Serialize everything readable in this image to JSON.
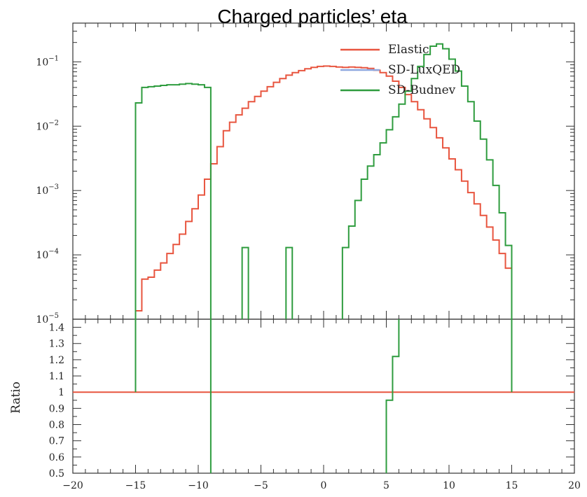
{
  "chart_data": [
    {
      "type": "line",
      "title": "Charged particles’ eta",
      "y_scale": "log",
      "xlim": [
        -20,
        20
      ],
      "ylim": [
        1e-05,
        0.4
      ],
      "y_ticks": [
        {
          "value": 0.1,
          "base": "10",
          "exp": "−1"
        },
        {
          "value": 0.01,
          "base": "10",
          "exp": "−2"
        },
        {
          "value": 0.001,
          "base": "10",
          "exp": "−3"
        },
        {
          "value": 0.0001,
          "base": "10",
          "exp": "−4"
        },
        {
          "value": 1e-05,
          "base": "10",
          "exp": "−5"
        }
      ],
      "legend_position": "top-right",
      "series": [
        {
          "name": "Elastic",
          "color": "#e8553f",
          "steps": [
            [
              -15,
              -14.5,
              1.35e-05
            ],
            [
              -14.5,
              -14,
              4.2e-05
            ],
            [
              -14,
              -13.5,
              4.5e-05
            ],
            [
              -13.5,
              -13,
              5.8e-05
            ],
            [
              -13,
              -12.5,
              7.5e-05
            ],
            [
              -12.5,
              -12,
              0.000105
            ],
            [
              -12,
              -11.5,
              0.000145
            ],
            [
              -11.5,
              -11,
              0.00021
            ],
            [
              -11,
              -10.5,
              0.00033
            ],
            [
              -10.5,
              -10,
              0.00052
            ],
            [
              -10,
              -9.5,
              0.00085
            ],
            [
              -9.5,
              -9,
              0.0015
            ],
            [
              -9,
              -8.5,
              0.0026
            ],
            [
              -8.5,
              -8,
              0.0048
            ],
            [
              -8,
              -7.5,
              0.0085
            ],
            [
              -7.5,
              -7,
              0.0115
            ],
            [
              -7,
              -6.5,
              0.015
            ],
            [
              -6.5,
              -6,
              0.019
            ],
            [
              -6,
              -5.5,
              0.024
            ],
            [
              -5.5,
              -5,
              0.029
            ],
            [
              -5,
              -4.5,
              0.035
            ],
            [
              -4.5,
              -4,
              0.041
            ],
            [
              -4,
              -3.5,
              0.048
            ],
            [
              -3.5,
              -3,
              0.055
            ],
            [
              -3,
              -2.5,
              0.062
            ],
            [
              -2.5,
              -2,
              0.068
            ],
            [
              -2,
              -1.5,
              0.073
            ],
            [
              -1.5,
              -1,
              0.078
            ],
            [
              -1,
              -0.5,
              0.082
            ],
            [
              -0.5,
              0,
              0.085
            ],
            [
              0,
              0.5,
              0.086
            ],
            [
              0.5,
              1,
              0.085
            ],
            [
              1,
              1.5,
              0.083
            ],
            [
              1.5,
              2,
              0.082
            ],
            [
              2,
              2.5,
              0.083
            ],
            [
              2.5,
              3,
              0.082
            ],
            [
              3,
              3.5,
              0.081
            ],
            [
              3.5,
              4,
              0.079
            ],
            [
              4,
              4.5,
              0.074
            ],
            [
              4.5,
              5,
              0.068
            ],
            [
              5,
              5.5,
              0.06
            ],
            [
              5.5,
              6,
              0.05
            ],
            [
              6,
              6.5,
              0.04
            ],
            [
              6.5,
              7,
              0.031
            ],
            [
              7,
              7.5,
              0.024
            ],
            [
              7.5,
              8,
              0.018
            ],
            [
              8,
              8.5,
              0.013
            ],
            [
              8.5,
              9,
              0.0095
            ],
            [
              9,
              9.5,
              0.0066
            ],
            [
              9.5,
              10,
              0.0046
            ],
            [
              10,
              10.5,
              0.0031
            ],
            [
              10.5,
              11,
              0.0021
            ],
            [
              11,
              11.5,
              0.0014
            ],
            [
              11.5,
              12,
              0.00093
            ],
            [
              12,
              12.5,
              0.00062
            ],
            [
              12.5,
              13,
              0.00041
            ],
            [
              13,
              13.5,
              0.00027
            ],
            [
              13.5,
              14,
              0.00017
            ],
            [
              14,
              14.5,
              0.000105
            ],
            [
              14.5,
              15,
              6.2e-05
            ]
          ]
        },
        {
          "name": "SD-LuxQED",
          "color": "#8fa8e0",
          "steps": []
        },
        {
          "name": "SD-Budnev",
          "color": "#2e9c3e",
          "steps": [
            [
              -15,
              -14.5,
              0.023
            ],
            [
              -14.5,
              -14,
              0.04
            ],
            [
              -14,
              -13.5,
              0.041
            ],
            [
              -13.5,
              -13,
              0.042
            ],
            [
              -13,
              -12.5,
              0.043
            ],
            [
              -12.5,
              -12,
              0.044
            ],
            [
              -12,
              -11.5,
              0.044
            ],
            [
              -11.5,
              -11,
              0.045
            ],
            [
              -11,
              -10.5,
              0.046
            ],
            [
              -10.5,
              -10,
              0.045
            ],
            [
              -10,
              -9.5,
              0.044
            ],
            [
              -9.5,
              -9,
              0.04
            ],
            [
              -6.5,
              -6,
              0.00013
            ],
            [
              -3,
              -2.5,
              0.00013
            ],
            [
              1.5,
              2,
              0.00013
            ],
            [
              2,
              2.5,
              0.00028
            ],
            [
              2.5,
              3,
              0.0007
            ],
            [
              3,
              3.5,
              0.0015
            ],
            [
              3.5,
              4,
              0.0024
            ],
            [
              4,
              4.5,
              0.0036
            ],
            [
              4.5,
              5,
              0.0055
            ],
            [
              5,
              5.5,
              0.0088
            ],
            [
              5.5,
              6,
              0.014
            ],
            [
              6,
              6.5,
              0.022
            ],
            [
              6.5,
              7,
              0.035
            ],
            [
              7,
              7.5,
              0.055
            ],
            [
              7.5,
              8,
              0.085
            ],
            [
              8,
              8.5,
              0.13
            ],
            [
              8.5,
              9,
              0.175
            ],
            [
              9,
              9.5,
              0.19
            ],
            [
              9.5,
              10,
              0.16
            ],
            [
              10,
              10.5,
              0.11
            ],
            [
              10.5,
              11,
              0.072
            ],
            [
              11,
              11.5,
              0.042
            ],
            [
              11.5,
              12,
              0.024
            ],
            [
              12,
              12.5,
              0.012
            ],
            [
              12.5,
              13,
              0.0063
            ],
            [
              13,
              13.5,
              0.003
            ],
            [
              13.5,
              14,
              0.0012
            ],
            [
              14,
              14.5,
              0.00045
            ],
            [
              14.5,
              15,
              0.00014
            ]
          ]
        }
      ]
    },
    {
      "type": "line",
      "ylabel": "Ratio",
      "xlim": [
        -20,
        20
      ],
      "ylim": [
        0.5,
        1.45
      ],
      "x_ticks": [
        -20,
        -15,
        -10,
        -5,
        0,
        5,
        10,
        15,
        20
      ],
      "y_ticks": [
        "0.5",
        "0.6",
        "0.7",
        "0.8",
        "0.9",
        "1",
        "1.1",
        "1.2",
        "1.3",
        "1.4"
      ],
      "series": [
        {
          "name": "Elastic",
          "color": "#e8553f",
          "points": [
            [
              -20,
              1
            ],
            [
              20,
              1
            ]
          ]
        },
        {
          "name": "SD-Budnev",
          "color": "#2e9c3e",
          "segments": [
            [
              [
                -15,
                1.45
              ],
              [
                -15,
                1
              ]
            ],
            [
              [
                -9,
                0.5
              ],
              [
                -9,
                1.45
              ]
            ],
            [
              [
                5,
                0.5
              ],
              [
                5,
                0.95
              ],
              [
                5.5,
                0.95
              ],
              [
                5.5,
                1.22
              ],
              [
                6,
                1.22
              ],
              [
                6,
                1.45
              ]
            ],
            [
              [
                15,
                1.45
              ],
              [
                15,
                1
              ]
            ]
          ]
        }
      ]
    }
  ]
}
